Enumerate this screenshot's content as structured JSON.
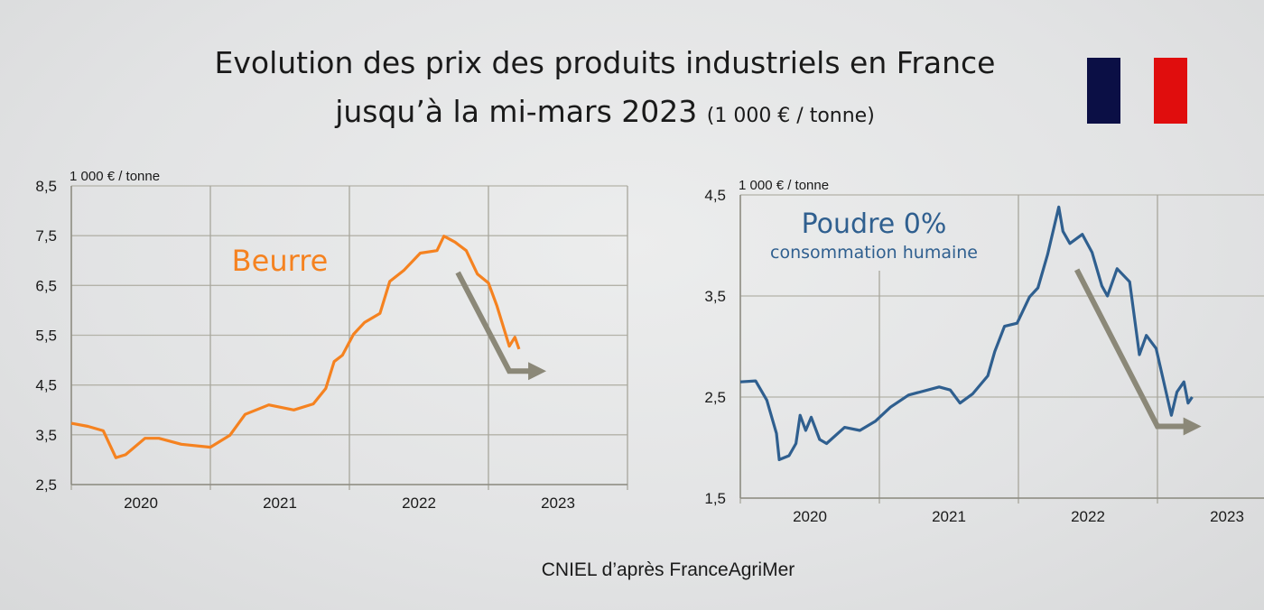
{
  "title": {
    "line1": "Evolution des prix des produits industriels en France",
    "line2": "jusqu’à la mi-mars 2023",
    "unit": "(1 000 € / tonne)"
  },
  "flag": {
    "colors": [
      "#0b0f45",
      "#ffffff",
      "#e00d0d"
    ]
  },
  "source": "CNIEL d’après  FranceAgriMer",
  "chart_data": [
    {
      "type": "line",
      "title": "Beurre",
      "ylabel": "1 000 €  / tonne",
      "ylim": [
        2.5,
        8.5
      ],
      "yticks": [
        "2,5",
        "3,5",
        "4,5",
        "5,5",
        "6,5",
        "7,5",
        "8,5"
      ],
      "xlim": [
        2020,
        2024
      ],
      "xticks": [
        "2020",
        "2021",
        "2022",
        "2023"
      ],
      "grid": true,
      "color": "#f58220",
      "series": [
        {
          "x": [
            2020.0,
            2020.12,
            2020.23,
            2020.32,
            2020.39,
            2020.53,
            2020.63,
            2020.79,
            2021.0,
            2021.14,
            2021.25,
            2021.42,
            2021.6,
            2021.74,
            2021.83,
            2021.89,
            2021.95,
            2022.03,
            2022.11,
            2022.22,
            2022.29,
            2022.39,
            2022.51,
            2022.63,
            2022.68,
            2022.76,
            2022.84,
            2022.92,
            2023.0,
            2023.06,
            2023.15,
            2023.19,
            2023.22
          ],
          "y": [
            3.73,
            3.67,
            3.58,
            3.04,
            3.1,
            3.43,
            3.43,
            3.31,
            3.25,
            3.49,
            3.91,
            4.1,
            4.0,
            4.12,
            4.43,
            4.97,
            5.1,
            5.52,
            5.76,
            5.94,
            6.58,
            6.8,
            7.15,
            7.2,
            7.49,
            7.37,
            7.2,
            6.73,
            6.55,
            6.1,
            5.28,
            5.46,
            5.22
          ]
        }
      ],
      "trend_arrow": {
        "x": [
          2022.78,
          2023.15,
          2023.39
        ],
        "y": [
          6.76,
          4.78,
          4.78
        ],
        "color": "#8b8878"
      }
    },
    {
      "type": "line",
      "title": "Poudre 0%",
      "subtitle": "consommation humaine",
      "ylabel": "1 000 €  / tonne",
      "ylim": [
        1.5,
        4.5
      ],
      "yticks": [
        "1,5",
        "2,5",
        "3,5",
        "4,5"
      ],
      "xlim": [
        2020,
        2023.78
      ],
      "xticks": [
        "2020",
        "2021",
        "2022",
        "2023"
      ],
      "grid": true,
      "color": "#2f5f8f",
      "series": [
        {
          "x": [
            2020.0,
            2020.11,
            2020.19,
            2020.26,
            2020.28,
            2020.35,
            2020.4,
            2020.43,
            2020.47,
            2020.51,
            2020.57,
            2020.62,
            2020.75,
            2020.86,
            2020.97,
            2021.08,
            2021.21,
            2021.43,
            2021.51,
            2021.58,
            2021.67,
            2021.78,
            2021.83,
            2021.9,
            2021.99,
            2022.08,
            2022.14,
            2022.21,
            2022.29,
            2022.32,
            2022.37,
            2022.46,
            2022.53,
            2022.6,
            2022.64,
            2022.71,
            2022.8,
            2022.87,
            2022.92,
            2022.99,
            2023.04,
            2023.1,
            2023.14,
            2023.19,
            2023.22,
            2023.25
          ],
          "y": [
            2.65,
            2.66,
            2.47,
            2.14,
            1.88,
            1.92,
            2.04,
            2.32,
            2.17,
            2.3,
            2.08,
            2.04,
            2.2,
            2.17,
            2.26,
            2.4,
            2.52,
            2.6,
            2.57,
            2.44,
            2.53,
            2.71,
            2.95,
            3.2,
            3.23,
            3.49,
            3.58,
            3.91,
            4.38,
            4.14,
            4.02,
            4.11,
            3.93,
            3.6,
            3.5,
            3.77,
            3.64,
            2.92,
            3.11,
            2.98,
            2.68,
            2.32,
            2.55,
            2.65,
            2.44,
            2.5
          ]
        }
      ],
      "trend_arrow": {
        "x": [
          2022.42,
          2023.0,
          2023.29
        ],
        "y": [
          3.76,
          2.21,
          2.21
        ],
        "color": "#8b8878"
      }
    }
  ]
}
